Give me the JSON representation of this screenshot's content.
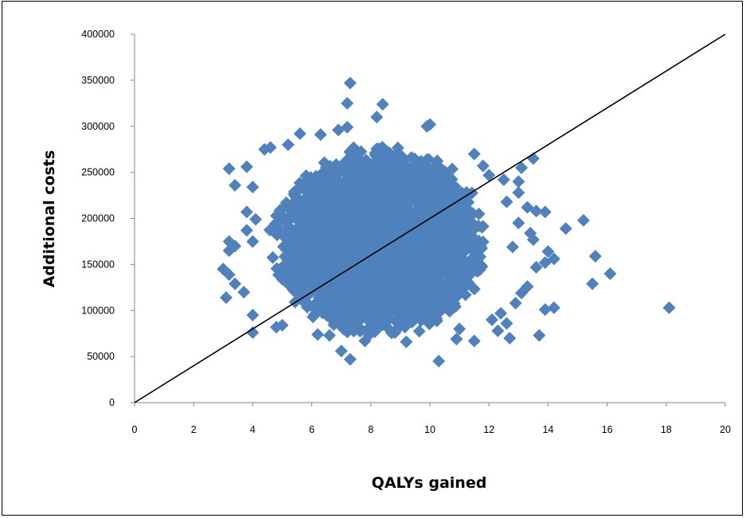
{
  "chart_data": {
    "type": "scatter",
    "title": "",
    "xlabel": "QALYs gained",
    "ylabel": "Additional costs",
    "xlim": [
      0,
      20
    ],
    "ylim": [
      0,
      400000
    ],
    "x_ticks": [
      "0",
      "2",
      "4",
      "6",
      "8",
      "10",
      "12",
      "14",
      "16",
      "18",
      "20"
    ],
    "y_ticks": [
      "0",
      "50000",
      "100000",
      "150000",
      "200000",
      "250000",
      "300000",
      "350000",
      "400000"
    ],
    "grid": false,
    "legend": "none",
    "marker": "diamond",
    "marker_color": "#4F81BD",
    "reference_line": {
      "x": [
        0,
        20
      ],
      "y": [
        0,
        400000
      ],
      "color": "#000000"
    },
    "core_cloud": {
      "center": [
        8.3,
        175000
      ],
      "x_range": [
        4.6,
        12.2
      ],
      "y_range": [
        72000,
        285000
      ],
      "point_count": 2600
    },
    "outlier_points": [
      [
        7.3,
        347000
      ],
      [
        7.2,
        325000
      ],
      [
        8.4,
        324000
      ],
      [
        8.2,
        310000
      ],
      [
        10.0,
        302000
      ],
      [
        9.9,
        300000
      ],
      [
        7.2,
        299000
      ],
      [
        6.9,
        296000
      ],
      [
        5.6,
        292000
      ],
      [
        6.3,
        291000
      ],
      [
        5.2,
        280000
      ],
      [
        4.6,
        277000
      ],
      [
        4.4,
        275000
      ],
      [
        11.5,
        270000
      ],
      [
        13.5,
        265000
      ],
      [
        11.8,
        257000
      ],
      [
        3.2,
        254000
      ],
      [
        3.8,
        256000
      ],
      [
        12.0,
        247000
      ],
      [
        13.1,
        255000
      ],
      [
        12.5,
        242000
      ],
      [
        13.0,
        240000
      ],
      [
        3.4,
        236000
      ],
      [
        4.0,
        234000
      ],
      [
        13.0,
        228000
      ],
      [
        12.6,
        218000
      ],
      [
        13.3,
        212000
      ],
      [
        13.6,
        208000
      ],
      [
        13.9,
        207000
      ],
      [
        3.8,
        207000
      ],
      [
        15.2,
        198000
      ],
      [
        4.1,
        199000
      ],
      [
        13.0,
        195000
      ],
      [
        14.6,
        189000
      ],
      [
        3.8,
        187000
      ],
      [
        13.4,
        184000
      ],
      [
        13.5,
        177000
      ],
      [
        3.2,
        175000
      ],
      [
        4.0,
        175000
      ],
      [
        3.4,
        170000
      ],
      [
        12.8,
        169000
      ],
      [
        14.0,
        164000
      ],
      [
        3.2,
        165000
      ],
      [
        15.6,
        159000
      ],
      [
        14.2,
        156000
      ],
      [
        13.9,
        152000
      ],
      [
        3.0,
        145000
      ],
      [
        3.2,
        139000
      ],
      [
        16.1,
        140000
      ],
      [
        13.6,
        147000
      ],
      [
        3.4,
        129000
      ],
      [
        15.5,
        129000
      ],
      [
        13.3,
        126000
      ],
      [
        3.7,
        120000
      ],
      [
        13.1,
        119000
      ],
      [
        3.1,
        114000
      ],
      [
        14.2,
        103000
      ],
      [
        18.1,
        103000
      ],
      [
        13.9,
        101000
      ],
      [
        4.0,
        95000
      ],
      [
        12.4,
        97000
      ],
      [
        12.1,
        90000
      ],
      [
        5.0,
        84000
      ],
      [
        4.8,
        82000
      ],
      [
        11.0,
        80000
      ],
      [
        4.0,
        76000
      ],
      [
        12.3,
        78000
      ],
      [
        6.2,
        74000
      ],
      [
        10.9,
        69000
      ],
      [
        13.7,
        73000
      ],
      [
        11.5,
        67000
      ],
      [
        12.7,
        70000
      ],
      [
        7.8,
        67000
      ],
      [
        9.2,
        66000
      ],
      [
        7.0,
        56000
      ],
      [
        7.3,
        47000
      ],
      [
        10.3,
        45000
      ],
      [
        6.6,
        73000
      ],
      [
        12.9,
        108000
      ],
      [
        12.6,
        86000
      ]
    ]
  }
}
